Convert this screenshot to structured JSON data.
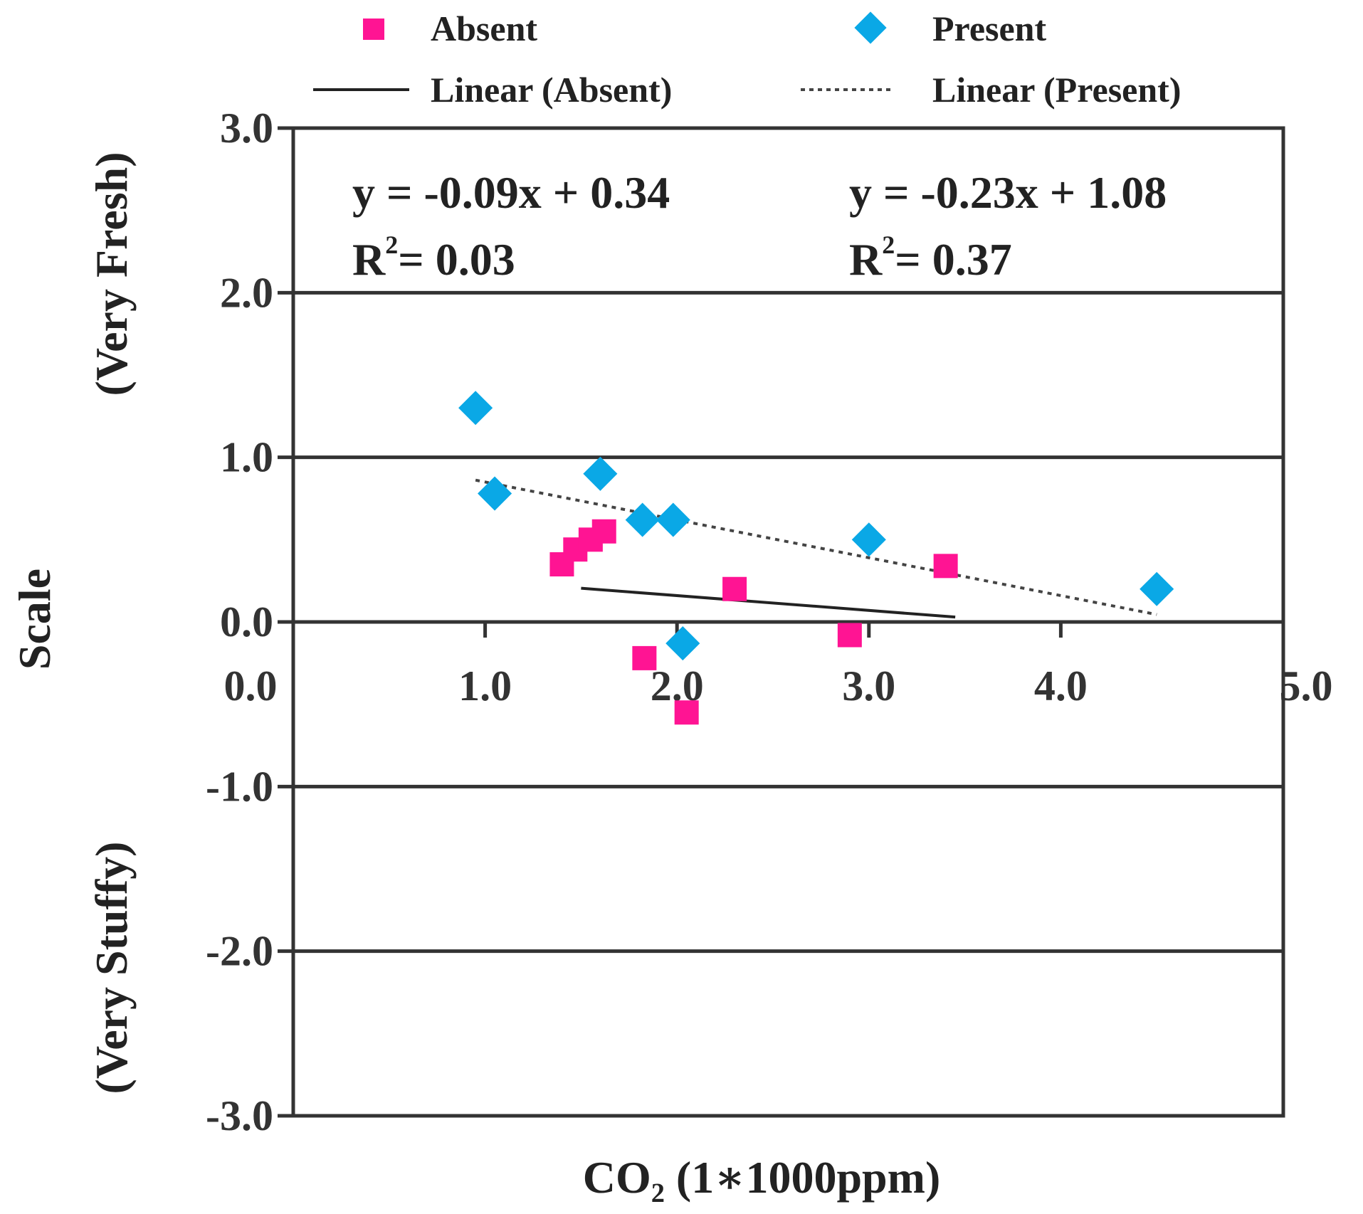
{
  "chart_data": {
    "type": "scatter",
    "title": "",
    "xlabel": "CO₂ (1∗1000ppm)",
    "ylabel": "Scale",
    "ylabel_top": "(Very Fresh)",
    "ylabel_bottom": "(Very Stuffy)",
    "xlim": [
      0,
      5
    ],
    "ylim": [
      -3,
      3
    ],
    "x_ticks": [
      "0.0",
      "1.0",
      "2.0",
      "3.0",
      "4.0",
      "5.0"
    ],
    "y_ticks": [
      "3.0",
      "2.0",
      "1.0",
      "0.0",
      "-1.0",
      "-2.0",
      "-3.0"
    ],
    "grid": "horizontal",
    "series": [
      {
        "name": "Absent",
        "marker": "square",
        "color": "#ff1493",
        "points": [
          [
            1.4,
            0.35
          ],
          [
            1.47,
            0.44
          ],
          [
            1.55,
            0.5
          ],
          [
            1.62,
            0.55
          ],
          [
            1.83,
            -0.22
          ],
          [
            2.05,
            -0.55
          ],
          [
            2.3,
            0.2
          ],
          [
            2.9,
            -0.08
          ],
          [
            3.4,
            0.34
          ]
        ]
      },
      {
        "name": "Present",
        "marker": "diamond",
        "color": "#0aa8e6",
        "points": [
          [
            0.95,
            1.3
          ],
          [
            1.05,
            0.78
          ],
          [
            1.6,
            0.9
          ],
          [
            1.82,
            0.62
          ],
          [
            1.98,
            0.62
          ],
          [
            2.03,
            -0.13
          ],
          [
            3.0,
            0.5
          ],
          [
            4.5,
            0.2
          ]
        ]
      }
    ],
    "trendlines": [
      {
        "name": "Linear (Absent)",
        "style": "solid",
        "color": "#222222",
        "slope": -0.09,
        "intercept": 0.34,
        "x_range": [
          1.5,
          3.45
        ],
        "equation": "y = -0.09x + 0.34",
        "r2_label": "R",
        "r2_exp": "2",
        "r2_value": "= 0.03"
      },
      {
        "name": "Linear (Present)",
        "style": "dotted",
        "color": "#444444",
        "slope": -0.23,
        "intercept": 1.08,
        "x_range": [
          0.95,
          4.5
        ],
        "equation": "y = -0.23x + 1.08",
        "r2_label": "R",
        "r2_exp": "2",
        "r2_value": "= 0.37"
      }
    ],
    "legend": {
      "placement": "top",
      "entries": [
        "Absent",
        "Present",
        "Linear (Absent)",
        "Linear (Present)"
      ]
    }
  }
}
